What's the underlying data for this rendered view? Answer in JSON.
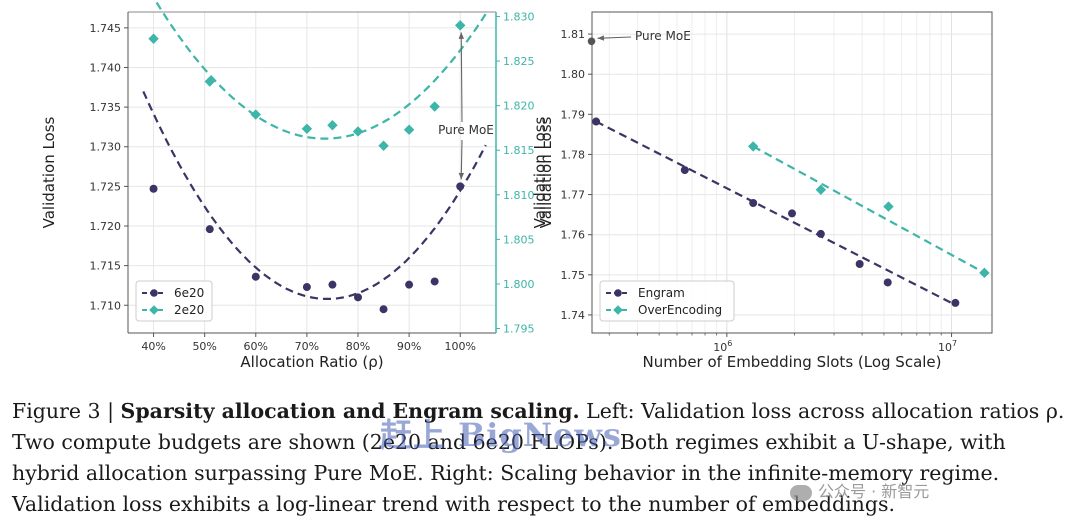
{
  "colors": {
    "series_6e20": "#3b3566",
    "series_2e20": "#3db5a8",
    "pure_moe": "#555555",
    "engram": "#3b3566",
    "overencoding": "#3db5a8"
  },
  "chart_data": [
    {
      "type": "scatter",
      "name": "left",
      "xlabel": "Allocation Ratio (ρ)",
      "ylabel_left": "Validation Loss",
      "ylabel_right": "Validation Loss",
      "xlim": [
        35,
        107
      ],
      "ylim_left": [
        1.7065,
        1.747
      ],
      "ylim_right": [
        1.7945,
        1.8305
      ],
      "x_ticks": [
        40,
        50,
        60,
        70,
        80,
        90,
        100
      ],
      "x_tick_labels": [
        "40%",
        "50%",
        "60%",
        "70%",
        "80%",
        "90%",
        "100%"
      ],
      "y_ticks_left": [
        1.71,
        1.715,
        1.72,
        1.725,
        1.73,
        1.735,
        1.74,
        1.745
      ],
      "y_tick_labels_left": [
        "1.710",
        "1.715",
        "1.720",
        "1.725",
        "1.730",
        "1.735",
        "1.740",
        "1.745"
      ],
      "y_ticks_right": [
        1.795,
        1.8,
        1.805,
        1.81,
        1.815,
        1.82,
        1.825,
        1.83
      ],
      "y_tick_labels_right": [
        "1.795",
        "1.800",
        "1.805",
        "1.810",
        "1.815",
        "1.820",
        "1.825",
        "1.830"
      ],
      "series": [
        {
          "name": "6e20",
          "axis": "left",
          "marker": "circle",
          "x": [
            40,
            51,
            60,
            70,
            75,
            80,
            85,
            90,
            95,
            100
          ],
          "y": [
            1.7247,
            1.7196,
            1.7136,
            1.7123,
            1.7126,
            1.711,
            1.7095,
            1.7126,
            1.713,
            1.725
          ],
          "fit": {
            "x_start": 38,
            "x_end": 105,
            "a": 2.02e-05,
            "vertex_x": 74,
            "vertex_y": 1.7108
          }
        },
        {
          "name": "2e20",
          "axis": "right",
          "marker": "diamond",
          "x": [
            40,
            51,
            60,
            70,
            75,
            80,
            85,
            90,
            95,
            100
          ],
          "y": [
            1.8275,
            1.8227,
            1.819,
            1.8174,
            1.8178,
            1.8171,
            1.8155,
            1.8173,
            1.8199,
            1.829
          ],
          "fit": {
            "x_start": 38,
            "x_end": 105,
            "a": 1.41e-05,
            "vertex_x": 73.5,
            "vertex_y": 1.8163
          }
        }
      ],
      "annotation": {
        "text": "Pure MoE"
      },
      "legend": {
        "position": "lower-left",
        "entries": [
          "6e20",
          "2e20"
        ]
      }
    },
    {
      "type": "scatter",
      "name": "right",
      "xscale": "log",
      "xlabel": "Number of Embedding Slots (Log Scale)",
      "ylabel": "Validation Loss",
      "xlim_log10": [
        5.4,
        7.18
      ],
      "ylim": [
        1.7355,
        1.8155
      ],
      "x_ticks": [
        1000000,
        10000000
      ],
      "x_tick_exponents": [
        "6",
        "7"
      ],
      "x_tick_base": "10",
      "y_ticks": [
        1.74,
        1.75,
        1.76,
        1.77,
        1.78,
        1.79,
        1.8,
        1.81
      ],
      "y_tick_labels": [
        "1.74",
        "1.75",
        "1.76",
        "1.77",
        "1.78",
        "1.79",
        "1.80",
        "1.81"
      ],
      "series": [
        {
          "name": "Engram",
          "marker": "circle",
          "x": [
            262000,
            650000,
            1310000,
            1950000,
            2620000,
            3900000,
            5200000,
            10400000
          ],
          "y": [
            1.7882,
            1.7761,
            1.7679,
            1.7653,
            1.7602,
            1.7527,
            1.7481,
            1.743
          ],
          "fit": {
            "x_start": 262000,
            "x_end": 10400000,
            "y_start": 1.7882,
            "y_end": 1.7425
          }
        },
        {
          "name": "OverEncoding",
          "marker": "diamond",
          "x": [
            1310000,
            2620000,
            5240000,
            14000000
          ],
          "y": [
            1.782,
            1.7712,
            1.767,
            1.7505
          ],
          "fit": {
            "x_start": 1310000,
            "x_end": 14000000,
            "y_start": 1.782,
            "y_end": 1.7505
          }
        }
      ],
      "pure_moe": {
        "x": 250000,
        "y": 1.8082
      },
      "annotation": {
        "text": "Pure MoE"
      },
      "legend": {
        "position": "lower-left",
        "entries": [
          "Engram",
          "OverEncoding"
        ]
      }
    }
  ],
  "caption": {
    "prefix": "Figure 3 | ",
    "bold": "Sparsity allocation and Engram scaling.",
    "body": " Left: Validation loss across allocation ratios ρ. Two compute budgets are shown (2e20 and 6e20 FLOPs). Both regimes exhibit a U-shape, with hybrid allocation surpassing Pure MoE. Right: Scaling behavior in the infinite-memory regime. Validation loss exhibits a log-linear trend with respect to the number of embeddings."
  },
  "watermarks": {
    "main": "赶上 BigNews",
    "wechat": "公众号 · 新智元"
  }
}
